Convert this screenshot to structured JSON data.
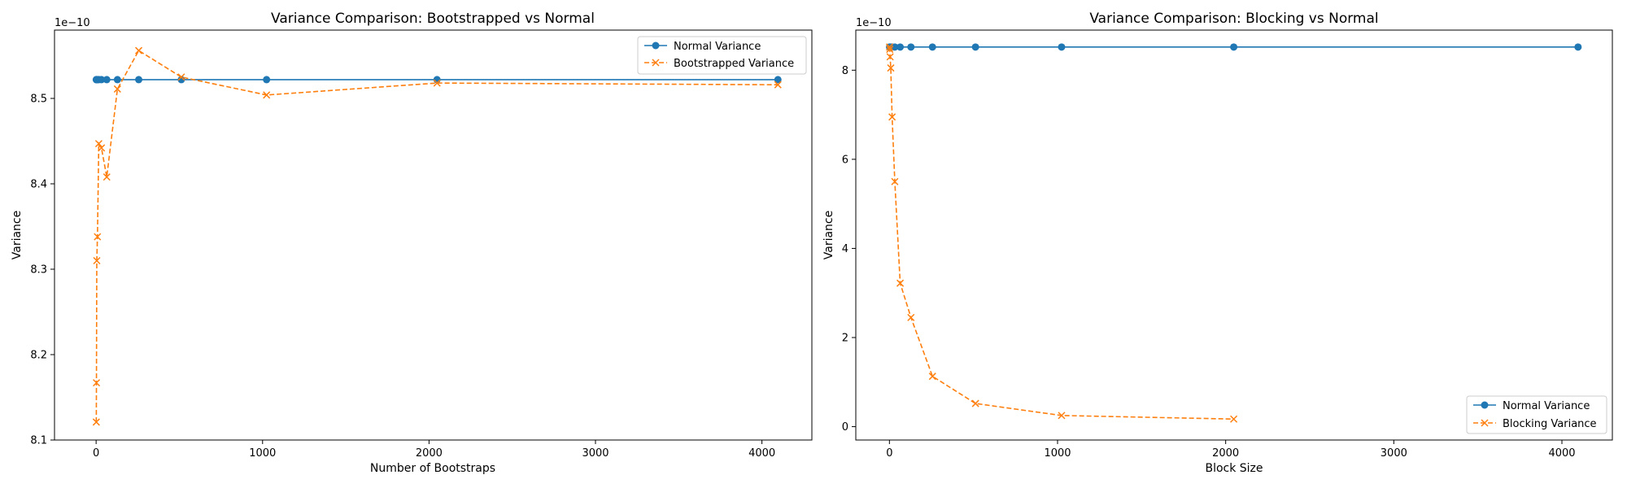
{
  "chart_data": [
    {
      "type": "line",
      "title": "Variance Comparison: Bootstrapped vs Normal",
      "xlabel": "Number of Bootstraps",
      "ylabel": "Variance",
      "y_multiplier_label": "1e−10",
      "xlim": [
        -250,
        4300
      ],
      "ylim": [
        8.1,
        8.58
      ],
      "xticks": [
        0,
        1000,
        2000,
        3000,
        4000
      ],
      "yticks": [
        8.1,
        8.2,
        8.3,
        8.4,
        8.5
      ],
      "ytick_labels": [
        "8.1",
        "8.2",
        "8.3",
        "8.4",
        "8.5"
      ],
      "grid": false,
      "legend_position": "top-right",
      "series": [
        {
          "name": "Normal Variance",
          "color": "#1f77b4",
          "line_style": "solid",
          "marker": "circle",
          "x": [
            1,
            2,
            4,
            8,
            16,
            32,
            64,
            128,
            256,
            512,
            1024,
            2048,
            4096
          ],
          "y": [
            8.522,
            8.522,
            8.522,
            8.522,
            8.522,
            8.522,
            8.522,
            8.522,
            8.522,
            8.522,
            8.522,
            8.522,
            8.522
          ]
        },
        {
          "name": "Bootstrapped Variance",
          "color": "#ff7f0e",
          "line_style": "dashed",
          "marker": "x",
          "x": [
            1,
            2,
            4,
            8,
            16,
            32,
            64,
            128,
            256,
            512,
            1024,
            2048,
            4096
          ],
          "y": [
            8.121,
            8.167,
            8.31,
            8.338,
            8.447,
            8.442,
            8.408,
            8.511,
            8.556,
            8.525,
            8.504,
            8.518,
            8.516
          ]
        }
      ]
    },
    {
      "type": "line",
      "title": "Variance Comparison: Blocking vs Normal",
      "xlabel": "Block Size",
      "ylabel": "Variance",
      "y_multiplier_label": "1e−10",
      "xlim": [
        -200,
        4300
      ],
      "ylim": [
        -0.3,
        8.9
      ],
      "xticks": [
        0,
        1000,
        2000,
        3000,
        4000
      ],
      "yticks": [
        0,
        2,
        4,
        6,
        8
      ],
      "ytick_labels": [
        "0",
        "2",
        "4",
        "6",
        "8"
      ],
      "grid": false,
      "legend_position": "bottom-right",
      "series": [
        {
          "name": "Normal Variance",
          "color": "#1f77b4",
          "line_style": "solid",
          "marker": "circle",
          "x": [
            1,
            2,
            4,
            8,
            16,
            32,
            64,
            128,
            256,
            512,
            1024,
            2048,
            4096
          ],
          "y": [
            8.52,
            8.52,
            8.52,
            8.52,
            8.52,
            8.52,
            8.52,
            8.52,
            8.52,
            8.52,
            8.52,
            8.52,
            8.52
          ]
        },
        {
          "name": "Blocking Variance",
          "color": "#ff7f0e",
          "line_style": "dashed",
          "marker": "x",
          "x": [
            1,
            2,
            4,
            8,
            16,
            32,
            64,
            128,
            256,
            512,
            1024,
            2048
          ],
          "y": [
            8.52,
            8.47,
            8.3,
            8.05,
            6.95,
            5.5,
            3.22,
            2.45,
            1.13,
            0.52,
            0.25,
            0.17
          ]
        }
      ]
    }
  ]
}
